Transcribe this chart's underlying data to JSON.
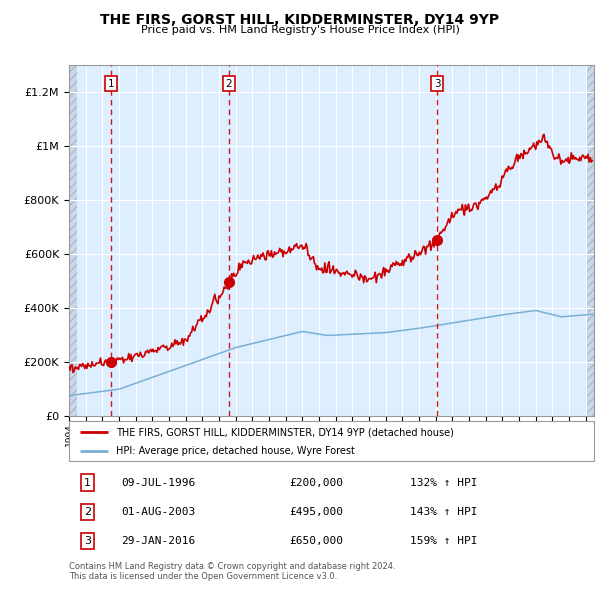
{
  "title": "THE FIRS, GORST HILL, KIDDERMINSTER, DY14 9YP",
  "subtitle": "Price paid vs. HM Land Registry's House Price Index (HPI)",
  "legend_line1": "THE FIRS, GORST HILL, KIDDERMINSTER, DY14 9YP (detached house)",
  "legend_line2": "HPI: Average price, detached house, Wyre Forest",
  "property_color": "#cc0000",
  "hpi_color": "#7bafd4",
  "transactions": [
    {
      "num": 1,
      "label": "09-JUL-1996",
      "price": "£200,000",
      "pct": "132% ↑ HPI",
      "x_year": 1996.52,
      "y_val": 200000
    },
    {
      "num": 2,
      "label": "01-AUG-2003",
      "price": "£495,000",
      "pct": "143% ↑ HPI",
      "x_year": 2003.58,
      "y_val": 495000
    },
    {
      "num": 3,
      "label": "29-JAN-2016",
      "price": "£650,000",
      "pct": "159% ↑ HPI",
      "x_year": 2016.08,
      "y_val": 650000
    }
  ],
  "footer_line1": "Contains HM Land Registry data © Crown copyright and database right 2024.",
  "footer_line2": "This data is licensed under the Open Government Licence v3.0.",
  "ylim": [
    0,
    1300000
  ],
  "xlim_start": 1994.0,
  "xlim_end": 2025.5,
  "yticks": [
    0,
    200000,
    400000,
    600000,
    800000,
    1000000,
    1200000
  ],
  "ylabels": [
    "£0",
    "£200K",
    "£400K",
    "£600K",
    "£800K",
    "£1M",
    "£1.2M"
  ],
  "background_color": "#ddeeff",
  "grid_color": "#ffffff",
  "hatch_color": "#c8d8e8"
}
